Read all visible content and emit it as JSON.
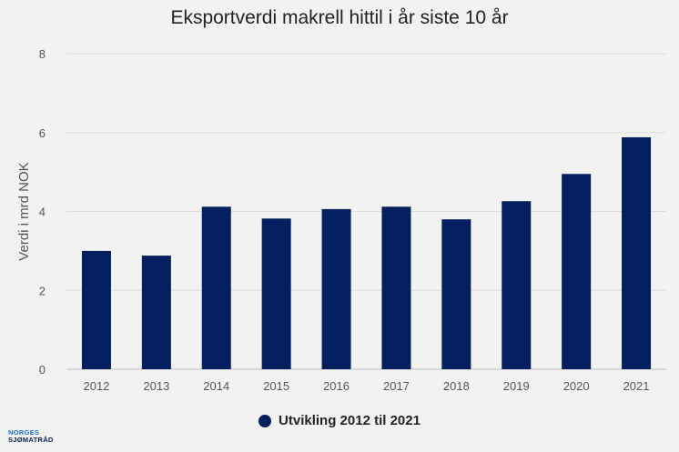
{
  "chart_data": {
    "type": "bar",
    "title": "Eksportverdi makrell hittil i år siste 10 år",
    "xlabel": "",
    "ylabel": "Verdi i mrd NOK",
    "ylim": [
      0,
      8
    ],
    "yticks": [
      0,
      2,
      4,
      6,
      8
    ],
    "grid": true,
    "categories": [
      "2012",
      "2013",
      "2014",
      "2015",
      "2016",
      "2017",
      "2018",
      "2019",
      "2020",
      "2021"
    ],
    "series": [
      {
        "name": "Utvikling 2012 til 2021",
        "values": [
          3.0,
          2.88,
          4.12,
          3.82,
          4.06,
          4.12,
          3.8,
          4.26,
          4.95,
          5.88
        ],
        "color": "#031f60"
      }
    ],
    "legend_placement": "bottom"
  },
  "logo": {
    "line1": "NORGES",
    "line2": "SJØMATRÅD"
  }
}
